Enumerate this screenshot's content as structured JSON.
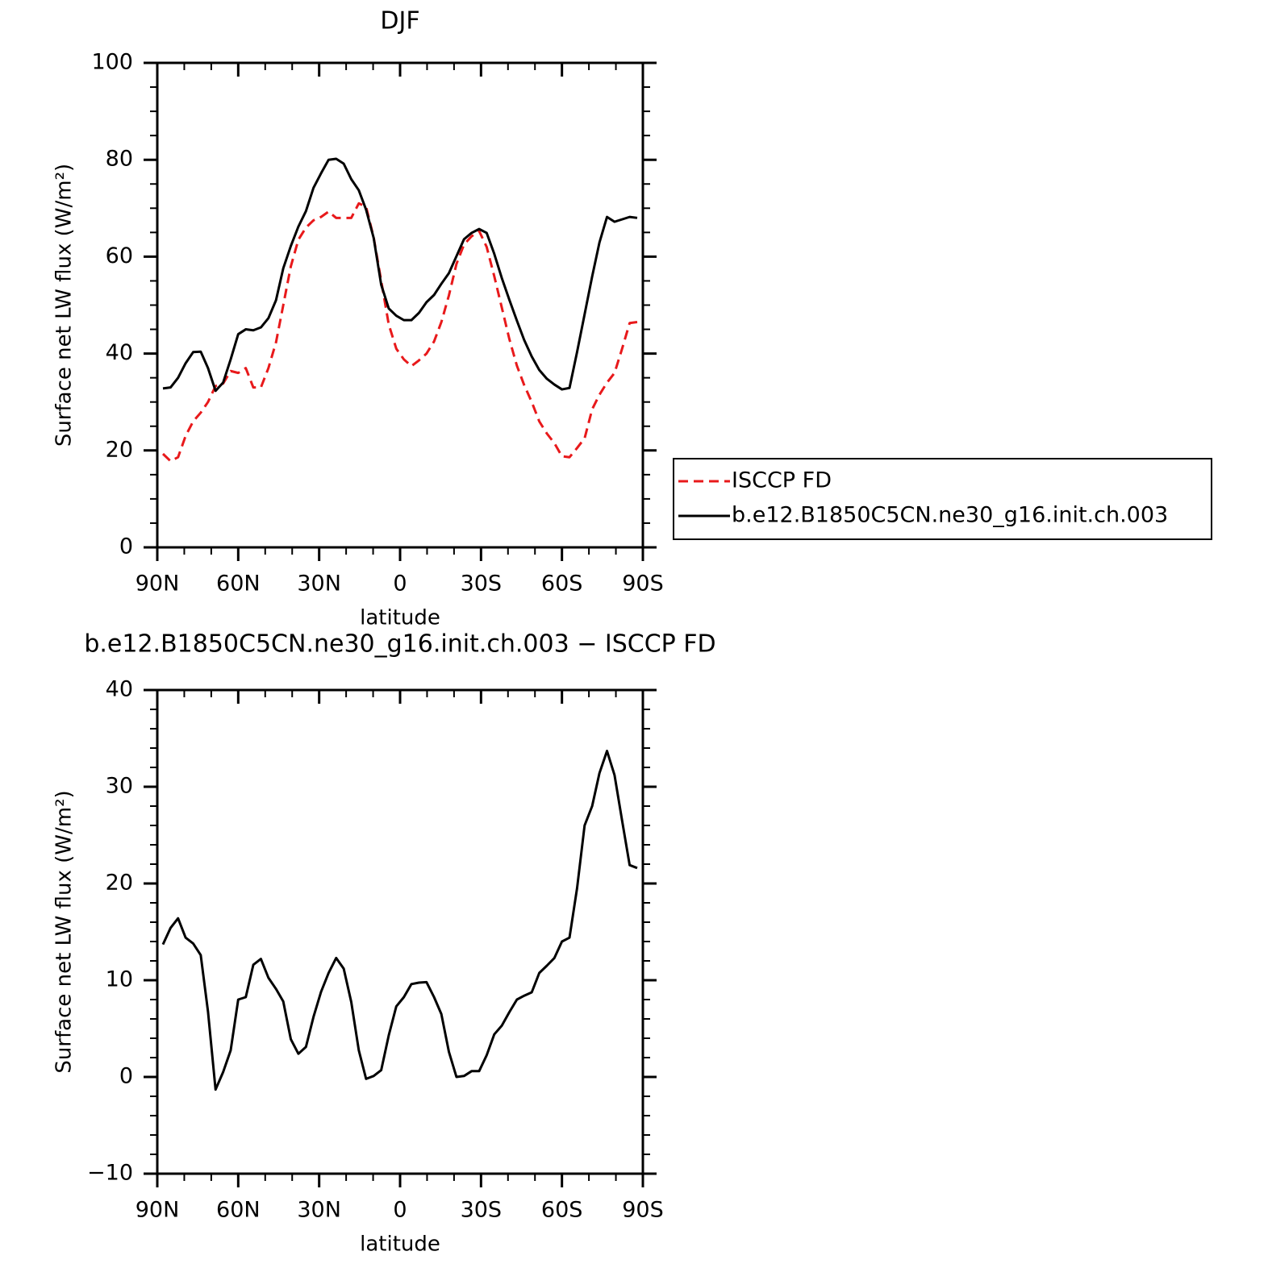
{
  "chart_data": [
    {
      "type": "line",
      "title": "DJF",
      "xlabel": "latitude",
      "ylabel": "Surface net LW flux (W/m²)",
      "x": [
        87.9,
        85.1,
        82.3,
        79.5,
        76.7,
        73.9,
        71.2,
        68.4,
        65.6,
        62.8,
        60.0,
        57.2,
        54.4,
        51.6,
        48.8,
        46.0,
        43.3,
        40.5,
        37.7,
        34.9,
        32.1,
        29.3,
        26.5,
        23.7,
        20.9,
        18.1,
        15.3,
        12.6,
        9.8,
        7.0,
        4.2,
        1.4,
        -1.4,
        -4.2,
        -7.0,
        -9.8,
        -12.6,
        -15.3,
        -18.1,
        -20.9,
        -23.7,
        -26.5,
        -29.3,
        -32.1,
        -34.9,
        -37.7,
        -40.5,
        -43.3,
        -46.0,
        -48.8,
        -51.6,
        -54.4,
        -57.2,
        -60.0,
        -62.8,
        -65.6,
        -68.4,
        -71.2,
        -73.9,
        -76.7,
        -79.5,
        -82.3,
        -85.1,
        -87.9
      ],
      "series": [
        {
          "name": "ISCCP FD",
          "color": "#e8191b",
          "linestyle": "dashed",
          "values": [
            19.3,
            17.8,
            18.6,
            23,
            26,
            27.8,
            30,
            33.3,
            33.8,
            36.4,
            36,
            37,
            33,
            33,
            37,
            42.3,
            50,
            58,
            63.5,
            66,
            67.5,
            68.2,
            69.3,
            68,
            68,
            68,
            71,
            70.3,
            64,
            55,
            46,
            41,
            38.8,
            37.4,
            38.6,
            40,
            42.5,
            46.5,
            52,
            58.5,
            62.5,
            64.2,
            65.3,
            62,
            56,
            49.5,
            43,
            37.5,
            33.5,
            30,
            26,
            23.5,
            21.5,
            18.8,
            18.6,
            20.5,
            22.5,
            28.5,
            31.5,
            34,
            36,
            41,
            46.3,
            46.5
          ]
        },
        {
          "name": "b.e12.B1850C5CN.ne30_g16.init.ch.003",
          "color": "#000000",
          "linestyle": "solid",
          "values": [
            32.8,
            33,
            35,
            38,
            40.3,
            40.4,
            37,
            32.3,
            34,
            38.8,
            44,
            45,
            44.8,
            45.4,
            47.3,
            51,
            57.6,
            62.2,
            66.2,
            69.4,
            74.2,
            77.2,
            80,
            80.2,
            79.2,
            76,
            73.7,
            69.7,
            63.9,
            54.2,
            49.3,
            47.8,
            46.9,
            46.9,
            48.4,
            50.6,
            52.1,
            54.4,
            56.6,
            60.1,
            63.6,
            64.9,
            65.7,
            64.9,
            60.6,
            55.6,
            51.1,
            46.8,
            42.8,
            39.4,
            36.6,
            34.8,
            33.6,
            32.6,
            32.9,
            40.3,
            48.1,
            55.9,
            62.9,
            68.2,
            67.2,
            67.7,
            68.2,
            68
          ]
        }
      ],
      "xlim": [
        90,
        -90
      ],
      "xticks": [
        {
          "value": 90,
          "label": "90N"
        },
        {
          "value": 60,
          "label": "60N"
        },
        {
          "value": 30,
          "label": "30N"
        },
        0,
        {
          "value": -30,
          "label": "30S"
        },
        {
          "value": -60,
          "label": "60S"
        },
        {
          "value": -90,
          "label": "90S"
        }
      ],
      "xminorticks": [
        80,
        70,
        50,
        40,
        20,
        10,
        -10,
        -20,
        -40,
        -50,
        -70,
        -80
      ],
      "ylim": [
        0,
        100
      ],
      "yticks": [
        0,
        20,
        40,
        60,
        80,
        100
      ],
      "yminorticks": [
        5,
        10,
        15,
        25,
        30,
        35,
        45,
        50,
        55,
        65,
        70,
        75,
        85,
        90,
        95
      ],
      "legend": "outside-right"
    },
    {
      "type": "line",
      "title": "b.e12.B1850C5CN.ne30_g16.init.ch.003 − ISCCP FD",
      "xlabel": "latitude",
      "ylabel": "Surface net LW flux (W/m²)",
      "x": [
        87.9,
        85.1,
        82.3,
        79.5,
        76.7,
        73.9,
        71.2,
        68.4,
        65.6,
        62.8,
        60.0,
        57.2,
        54.4,
        51.6,
        48.8,
        46.0,
        43.3,
        40.5,
        37.7,
        34.9,
        32.1,
        29.3,
        26.5,
        23.7,
        20.9,
        18.1,
        15.3,
        12.6,
        9.8,
        7.0,
        4.2,
        1.4,
        -1.4,
        -4.2,
        -7.0,
        -9.8,
        -12.6,
        -15.3,
        -18.1,
        -20.9,
        -23.7,
        -26.5,
        -29.3,
        -32.1,
        -34.9,
        -37.7,
        -40.5,
        -43.3,
        -46.0,
        -48.8,
        -51.6,
        -54.4,
        -57.2,
        -60.0,
        -62.8,
        -65.6,
        -68.4,
        -71.2,
        -73.9,
        -76.7,
        -79.5,
        -82.3,
        -85.1,
        -87.9
      ],
      "series": [
        {
          "color": "#000000",
          "linestyle": "solid",
          "values": [
            13.7,
            15.4,
            16.4,
            14.4,
            13.8,
            12.6,
            6.75,
            -1.3,
            0.5,
            2.75,
            8,
            8.25,
            11.6,
            12.2,
            10.25,
            9.1,
            7.8,
            3.9,
            2.4,
            3.1,
            6.2,
            8.8,
            10.75,
            12.3,
            11.2,
            7.75,
            2.75,
            -0.2,
            0.1,
            0.7,
            4.3,
            7.3,
            8.25,
            9.6,
            9.75,
            9.8,
            8.25,
            6.5,
            2.6,
            0,
            0.1,
            0.6,
            0.6,
            2.25,
            4.4,
            5.3,
            6.7,
            8,
            8.4,
            8.75,
            10.75,
            11.5,
            12.3,
            14,
            14.4,
            19.5,
            26,
            28,
            31.4,
            33.7,
            31.2,
            26.5,
            21.9,
            21.6
          ]
        }
      ],
      "xlim": [
        90,
        -90
      ],
      "xticks": [
        {
          "value": 90,
          "label": "90N"
        },
        {
          "value": 60,
          "label": "60N"
        },
        {
          "value": 30,
          "label": "30N"
        },
        0,
        {
          "value": -30,
          "label": "30S"
        },
        {
          "value": -60,
          "label": "60S"
        },
        {
          "value": -90,
          "label": "90S"
        }
      ],
      "xminorticks": [
        80,
        70,
        50,
        40,
        20,
        10,
        -10,
        -20,
        -40,
        -50,
        -70,
        -80
      ],
      "ylim": [
        -10,
        40
      ],
      "yticks": [
        {
          "value": -10,
          "label": "−10"
        },
        0,
        10,
        20,
        30,
        40
      ],
      "yminorticks": [
        -8,
        -6,
        -4,
        -2,
        2,
        4,
        6,
        8,
        12,
        14,
        16,
        18,
        22,
        24,
        26,
        28,
        32,
        34,
        36,
        38
      ]
    }
  ]
}
